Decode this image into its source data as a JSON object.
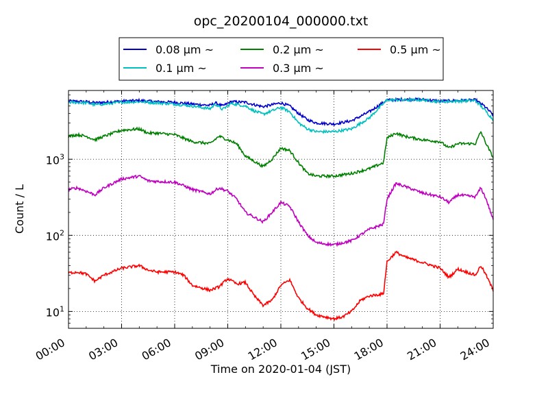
{
  "chart_data": {
    "type": "line",
    "title": "opc_20200104_000000.txt",
    "xlabel": "Time on 2020-01-04 (JST)",
    "ylabel": "Count / L",
    "x_unit": "hours",
    "xlim": [
      0,
      24
    ],
    "ylim": [
      6,
      8000
    ],
    "y_scale": "log",
    "grid": true,
    "grid_style": "dotted",
    "legend_placement": "top-center",
    "x_tick_labels": [
      "00:00",
      "03:00",
      "06:00",
      "09:00",
      "12:00",
      "15:00",
      "18:00",
      "21:00",
      "24:00"
    ],
    "y_ticks": [
      {
        "value": 10,
        "base": "10",
        "exp": "1"
      },
      {
        "value": 100,
        "base": "10",
        "exp": "2"
      },
      {
        "value": 1000,
        "base": "10",
        "exp": "3"
      }
    ],
    "series": [
      {
        "name": "0.08 μm ~",
        "color": "#0000cc",
        "points": [
          [
            0,
            5800
          ],
          [
            1,
            5700
          ],
          [
            1.5,
            5500
          ],
          [
            2,
            5600
          ],
          [
            3,
            5800
          ],
          [
            4,
            5900
          ],
          [
            5,
            5700
          ],
          [
            6,
            5600
          ],
          [
            7,
            5300
          ],
          [
            8,
            5100
          ],
          [
            8.3,
            5500
          ],
          [
            8.7,
            5000
          ],
          [
            9.2,
            5700
          ],
          [
            10,
            5600
          ],
          [
            10.5,
            5200
          ],
          [
            11,
            4900
          ],
          [
            12,
            5500
          ],
          [
            12.5,
            5000
          ],
          [
            13,
            4000
          ],
          [
            13.5,
            3300
          ],
          [
            14,
            3000
          ],
          [
            15,
            2900
          ],
          [
            16,
            3200
          ],
          [
            17,
            4200
          ],
          [
            18,
            6000
          ],
          [
            19,
            6100
          ],
          [
            20,
            6100
          ],
          [
            21,
            5800
          ],
          [
            22,
            5900
          ],
          [
            23,
            6000
          ],
          [
            23.5,
            5000
          ],
          [
            24,
            3800
          ]
        ]
      },
      {
        "name": "0.1 μm ~",
        "color": "#00bfbf",
        "points": [
          [
            0,
            5600
          ],
          [
            1,
            5500
          ],
          [
            1.5,
            5200
          ],
          [
            2,
            5300
          ],
          [
            3,
            5600
          ],
          [
            4,
            5700
          ],
          [
            5,
            5500
          ],
          [
            6,
            5300
          ],
          [
            7,
            5000
          ],
          [
            8,
            4600
          ],
          [
            8.3,
            5300
          ],
          [
            8.7,
            4500
          ],
          [
            9.2,
            5400
          ],
          [
            10,
            5000
          ],
          [
            10.5,
            4300
          ],
          [
            11,
            3900
          ],
          [
            12,
            4800
          ],
          [
            12.5,
            4200
          ],
          [
            13,
            3000
          ],
          [
            13.5,
            2500
          ],
          [
            14,
            2300
          ],
          [
            15,
            2300
          ],
          [
            16,
            2500
          ],
          [
            17,
            3500
          ],
          [
            18,
            6000
          ],
          [
            19,
            6000
          ],
          [
            20,
            6000
          ],
          [
            21,
            5700
          ],
          [
            22,
            5800
          ],
          [
            23,
            5900
          ],
          [
            23.5,
            4500
          ],
          [
            24,
            3300
          ]
        ]
      },
      {
        "name": "0.2 μm ~",
        "color": "#008000",
        "points": [
          [
            0,
            2000
          ],
          [
            0.5,
            2100
          ],
          [
            1,
            2000
          ],
          [
            1.5,
            1800
          ],
          [
            2,
            2000
          ],
          [
            3,
            2400
          ],
          [
            4,
            2500
          ],
          [
            4.5,
            2200
          ],
          [
            5,
            2200
          ],
          [
            6,
            2100
          ],
          [
            7,
            1700
          ],
          [
            8,
            1600
          ],
          [
            8.5,
            2000
          ],
          [
            9,
            1800
          ],
          [
            9.5,
            1600
          ],
          [
            10,
            1100
          ],
          [
            11,
            800
          ],
          [
            11.5,
            1000
          ],
          [
            12,
            1400
          ],
          [
            12.5,
            1300
          ],
          [
            13,
            900
          ],
          [
            13.5,
            650
          ],
          [
            14,
            600
          ],
          [
            15,
            600
          ],
          [
            16,
            650
          ],
          [
            17,
            750
          ],
          [
            17.8,
            900
          ],
          [
            18,
            1900
          ],
          [
            18.5,
            2200
          ],
          [
            19,
            2000
          ],
          [
            20,
            1800
          ],
          [
            21,
            1700
          ],
          [
            21.5,
            1400
          ],
          [
            22,
            1600
          ],
          [
            23,
            1600
          ],
          [
            23.3,
            2300
          ],
          [
            23.6,
            1600
          ],
          [
            24,
            1050
          ]
        ]
      },
      {
        "name": "0.3 μm ~",
        "color": "#bf00bf",
        "points": [
          [
            0,
            400
          ],
          [
            0.5,
            420
          ],
          [
            1,
            380
          ],
          [
            1.5,
            340
          ],
          [
            2,
            420
          ],
          [
            3,
            550
          ],
          [
            4,
            600
          ],
          [
            4.5,
            520
          ],
          [
            5,
            510
          ],
          [
            6,
            500
          ],
          [
            6.5,
            450
          ],
          [
            7,
            400
          ],
          [
            8,
            350
          ],
          [
            8.5,
            420
          ],
          [
            9,
            380
          ],
          [
            9.5,
            300
          ],
          [
            10,
            200
          ],
          [
            11,
            150
          ],
          [
            11.5,
            200
          ],
          [
            12,
            270
          ],
          [
            12.5,
            240
          ],
          [
            13,
            150
          ],
          [
            13.5,
            100
          ],
          [
            14,
            80
          ],
          [
            15,
            75
          ],
          [
            16,
            85
          ],
          [
            17,
            120
          ],
          [
            17.8,
            140
          ],
          [
            18,
            300
          ],
          [
            18.5,
            480
          ],
          [
            19,
            440
          ],
          [
            20,
            360
          ],
          [
            21,
            320
          ],
          [
            21.5,
            270
          ],
          [
            22,
            340
          ],
          [
            23,
            320
          ],
          [
            23.3,
            420
          ],
          [
            23.6,
            300
          ],
          [
            24,
            160
          ]
        ]
      },
      {
        "name": "0.5 μm ~",
        "color": "#ff0000",
        "points": [
          [
            0,
            32
          ],
          [
            0.5,
            33
          ],
          [
            1,
            31
          ],
          [
            1.5,
            25
          ],
          [
            2,
            30
          ],
          [
            3,
            37
          ],
          [
            4,
            40
          ],
          [
            4.5,
            35
          ],
          [
            5,
            33
          ],
          [
            6,
            33
          ],
          [
            6.5,
            30
          ],
          [
            7,
            22
          ],
          [
            8,
            19
          ],
          [
            8.5,
            21
          ],
          [
            9,
            27
          ],
          [
            9.5,
            23
          ],
          [
            10,
            24
          ],
          [
            10.5,
            16
          ],
          [
            11,
            12
          ],
          [
            11.5,
            14
          ],
          [
            12,
            22
          ],
          [
            12.5,
            26
          ],
          [
            13,
            15
          ],
          [
            13.5,
            11
          ],
          [
            14,
            9
          ],
          [
            15,
            8
          ],
          [
            15.5,
            8.5
          ],
          [
            16,
            10
          ],
          [
            16.5,
            14
          ],
          [
            17,
            16
          ],
          [
            17.8,
            17
          ],
          [
            18,
            45
          ],
          [
            18.5,
            60
          ],
          [
            19,
            52
          ],
          [
            20,
            44
          ],
          [
            21,
            37
          ],
          [
            21.5,
            28
          ],
          [
            22,
            36
          ],
          [
            23,
            30
          ],
          [
            23.3,
            40
          ],
          [
            23.6,
            30
          ],
          [
            24,
            19
          ]
        ]
      }
    ]
  }
}
